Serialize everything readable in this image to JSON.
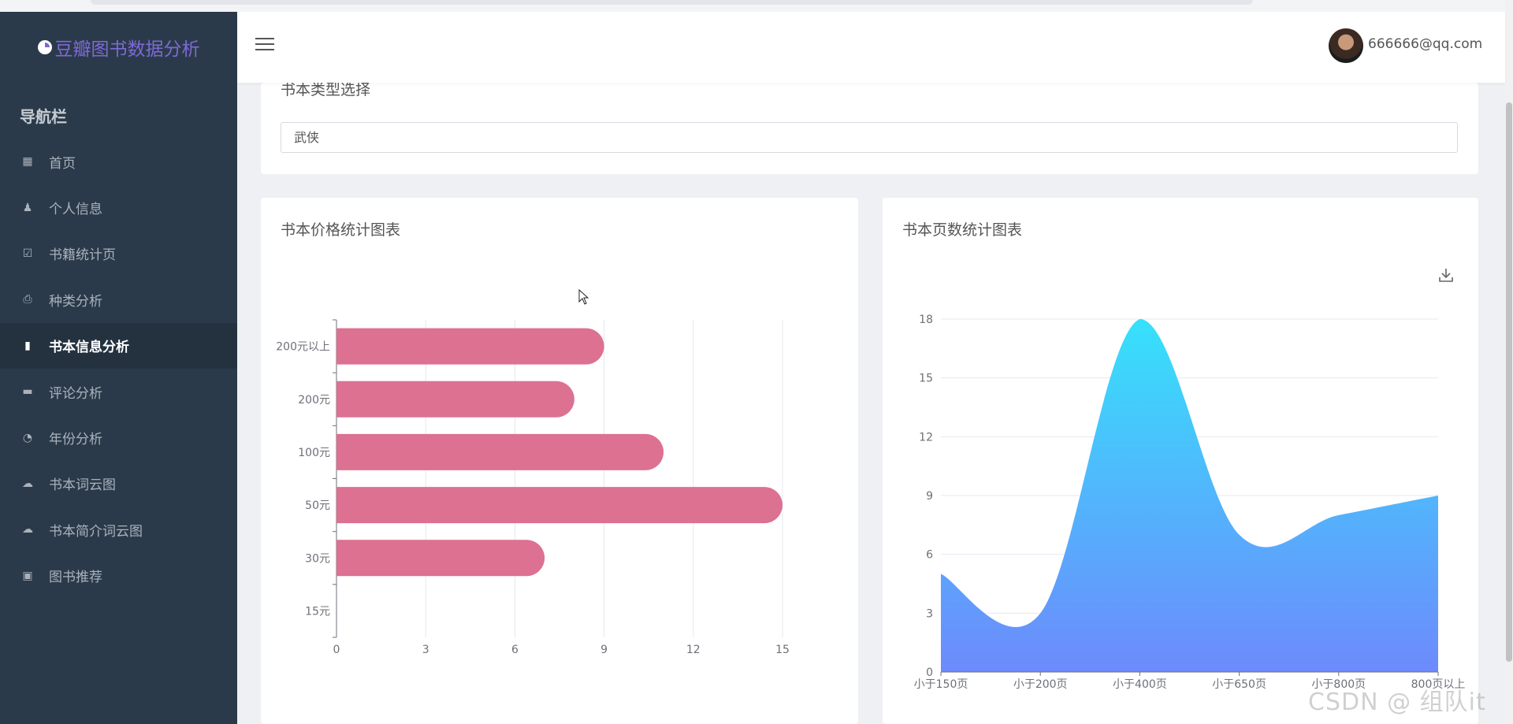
{
  "app": {
    "title": "豆瓣图书数据分析"
  },
  "sidebar": {
    "heading": "导航栏",
    "items": [
      {
        "label": "首页",
        "icon": "dashboard-icon",
        "active": false
      },
      {
        "label": "个人信息",
        "icon": "user-icon",
        "active": false
      },
      {
        "label": "书籍统计页",
        "icon": "calendar-check-icon",
        "active": false
      },
      {
        "label": "种类分析",
        "icon": "printer-icon",
        "active": false
      },
      {
        "label": "书本信息分析",
        "icon": "book-icon",
        "active": true
      },
      {
        "label": "评论分析",
        "icon": "comment-icon",
        "active": false
      },
      {
        "label": "年份分析",
        "icon": "history-icon",
        "active": false
      },
      {
        "label": "书本词云图",
        "icon": "cloud-icon",
        "active": false
      },
      {
        "label": "书本简介词云图",
        "icon": "cloud-download-icon",
        "active": false
      },
      {
        "label": "图书推荐",
        "icon": "star-box-icon",
        "active": false
      }
    ]
  },
  "header": {
    "menu_icon": "hamburger-icon",
    "user_email": "666666@qq.com"
  },
  "type_select": {
    "title": "书本类型选择",
    "value": "武侠"
  },
  "price_card": {
    "title": "书本价格统计图表"
  },
  "pages_card": {
    "title": "书本页数统计图表",
    "toolbox_icon": "download-icon"
  },
  "watermark": "CSDN @ 组队it",
  "colors": {
    "sidebar_bg": "#2b3a4a",
    "brand": "#7c6ad6",
    "bar": "#dc7191",
    "area_top": "#36e1fb",
    "area_bottom": "#6d8afc"
  },
  "chart_data": [
    {
      "type": "bar",
      "orientation": "horizontal",
      "categories": [
        "15元",
        "30元",
        "50元",
        "100元",
        "200元",
        "200元以上"
      ],
      "values": [
        0,
        7,
        15,
        11,
        8,
        9
      ],
      "xlim": [
        0,
        15
      ],
      "xticks": [
        0,
        3,
        6,
        9,
        12,
        15
      ],
      "grid": true
    },
    {
      "type": "area",
      "smooth": true,
      "categories": [
        "小于150页",
        "小于200页",
        "小于400页",
        "小于650页",
        "小于800页",
        "800页以上"
      ],
      "values": [
        5,
        3,
        18,
        7,
        8,
        9
      ],
      "ylim": [
        0,
        18
      ],
      "yticks": [
        0,
        3,
        6,
        9,
        12,
        15,
        18
      ],
      "grid": true
    }
  ]
}
